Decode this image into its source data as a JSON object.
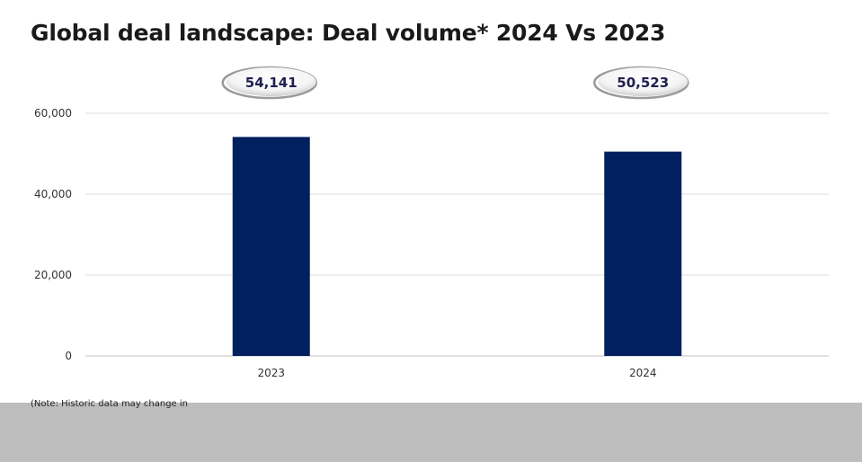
{
  "header": {
    "title": "Global deal landscape: Deal volume* 2024 Vs 2023"
  },
  "chart_data": {
    "type": "bar",
    "title": "Global deal landscape: Deal volume* 2024 Vs 2023",
    "categories": [
      "2023",
      "2024"
    ],
    "values": [
      54141,
      50523
    ],
    "data_labels": [
      "54,141",
      "50,523"
    ],
    "xlabel": "",
    "ylabel": "",
    "ylim": [
      0,
      60000
    ],
    "yticks": [
      0,
      20000,
      40000,
      60000
    ],
    "ytick_labels": [
      "0",
      "20,000",
      "40,000",
      "60,000"
    ],
    "grid": true,
    "legend": "none",
    "colors": {
      "bar": "#002060",
      "label_text": "#1f1f4f",
      "grid": "#dedede",
      "axis": "#bfbfbf"
    }
  },
  "footer": {
    "note": "(Note: Historic data may change in"
  }
}
